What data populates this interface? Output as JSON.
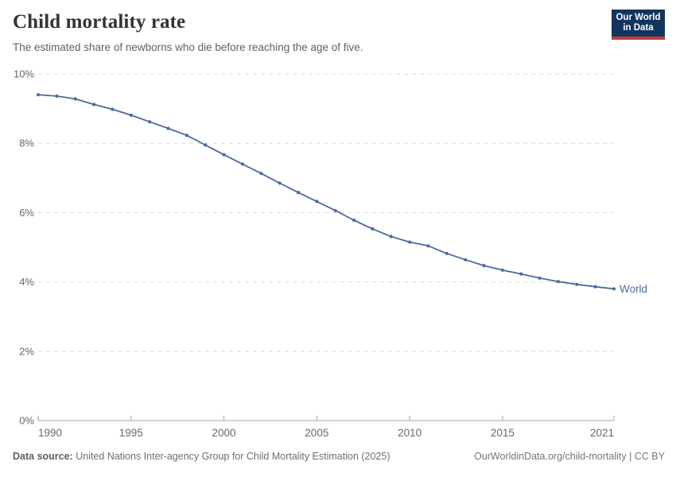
{
  "header": {
    "title": "Child mortality rate",
    "subtitle": "The estimated share of newborns who die before reaching the age of five.",
    "logo": {
      "line1": "Our World",
      "line2": "in Data"
    }
  },
  "chart_data": {
    "type": "line",
    "title": "Child mortality rate",
    "grid": "horizontal-dashed",
    "legend_position": "end-of-line-label",
    "xlim": [
      1990,
      2021
    ],
    "ylim": [
      0,
      10
    ],
    "x_ticks": [
      1990,
      1995,
      2000,
      2005,
      2010,
      2015,
      2021
    ],
    "y_ticks": [
      {
        "value": 0,
        "label": "0%"
      },
      {
        "value": 2,
        "label": "2%"
      },
      {
        "value": 4,
        "label": "4%"
      },
      {
        "value": 6,
        "label": "6%"
      },
      {
        "value": 8,
        "label": "8%"
      },
      {
        "value": 10,
        "label": "10%"
      }
    ],
    "series": [
      {
        "name": "World",
        "color": "#4c6a9c",
        "x": [
          1990,
          1991,
          1992,
          1993,
          1994,
          1995,
          1996,
          1997,
          1998,
          1999,
          2000,
          2001,
          2002,
          2003,
          2004,
          2005,
          2006,
          2007,
          2008,
          2009,
          2010,
          2011,
          2012,
          2013,
          2014,
          2015,
          2016,
          2017,
          2018,
          2019,
          2020,
          2021
        ],
        "values": [
          9.4,
          9.36,
          9.28,
          9.12,
          8.98,
          8.81,
          8.62,
          8.43,
          8.23,
          7.95,
          7.67,
          7.4,
          7.13,
          6.85,
          6.58,
          6.32,
          6.06,
          5.78,
          5.53,
          5.31,
          5.15,
          5.04,
          4.82,
          4.64,
          4.47,
          4.34,
          4.23,
          4.11,
          4.01,
          3.93,
          3.86,
          3.8
        ]
      }
    ]
  },
  "footer": {
    "datasource_label": "Data source:",
    "datasource_text": " United Nations Inter-agency Group for Child Mortality Estimation (2025)",
    "link": "OurWorldinData.org/child-mortality | CC BY"
  },
  "colors": {
    "accent": "#4c6a9c",
    "gridline": "#dcdcdc",
    "axis": "#a5a5a5",
    "tick_text": "#676767",
    "logo_bg": "#12355b",
    "logo_red": "#c43b3f"
  }
}
